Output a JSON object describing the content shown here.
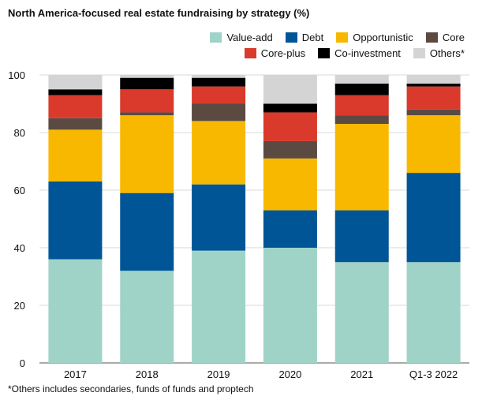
{
  "chart_data": {
    "type": "bar",
    "stacked": true,
    "title": "North America-focused real estate fundraising by strategy (%)",
    "xlabel": "",
    "ylabel": "",
    "ylim": [
      0,
      100
    ],
    "yticks": [
      0,
      20,
      40,
      60,
      80,
      100
    ],
    "grid": true,
    "legend_position": "top-right",
    "categories": [
      "2017",
      "2018",
      "2019",
      "2020",
      "2021",
      "Q1-3 2022"
    ],
    "series": [
      {
        "name": "Value-add",
        "color": "#9fd3c7",
        "values": [
          36,
          32,
          39,
          40,
          35,
          35
        ]
      },
      {
        "name": "Debt",
        "color": "#005596",
        "values": [
          27,
          27,
          23,
          13,
          18,
          31
        ]
      },
      {
        "name": "Opportunistic",
        "color": "#f9b800",
        "values": [
          18,
          27,
          22,
          18,
          30,
          20
        ]
      },
      {
        "name": "Core",
        "color": "#5a4a42",
        "values": [
          4,
          1,
          6,
          6,
          3,
          2
        ]
      },
      {
        "name": "Core-plus",
        "color": "#d93a2b",
        "values": [
          8,
          8,
          6,
          10,
          7,
          8
        ]
      },
      {
        "name": "Co-investment",
        "color": "#000000",
        "values": [
          2,
          4,
          3,
          3,
          4,
          1
        ]
      },
      {
        "name": "Others*",
        "color": "#d4d4d4",
        "values": [
          5,
          1,
          1,
          10,
          3,
          3
        ]
      }
    ]
  },
  "footnote": "*Others includes secondaries, funds of funds and proptech"
}
